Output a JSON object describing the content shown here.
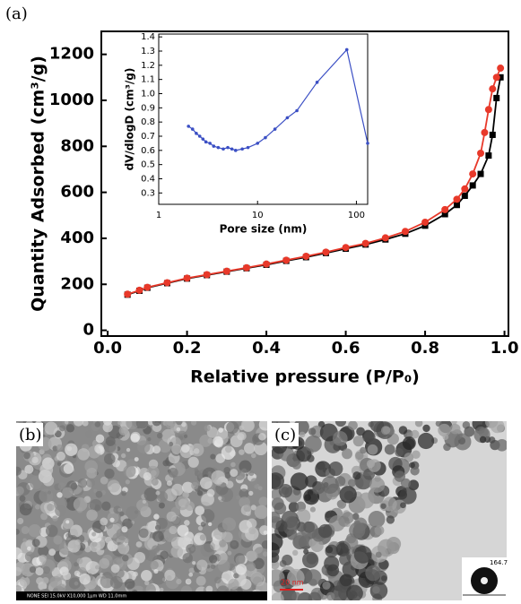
{
  "panels": {
    "a": "(a)",
    "b": "(b)",
    "c": "(c)"
  },
  "sem_info": "NONE   SEI   15.0kV   X10,000   1µm   WD 11.0mm",
  "tem_scale": "20 nm",
  "contact_angle": "164.7",
  "chart_data": [
    {
      "type": "line",
      "x_label": "Relative pressure (P/P₀)",
      "y_label": "Quantity Adsorbed (cm³/g)",
      "xlim": [
        -0.016,
        1.01
      ],
      "ylim": [
        -25,
        1300
      ],
      "xticks": [
        {
          "value": 0,
          "label": "0.0"
        },
        0.2,
        0.4,
        0.6,
        0.8,
        {
          "value": 1,
          "label": "1.0"
        }
      ],
      "yticks": [
        0,
        200,
        400,
        600,
        800,
        1000,
        1200
      ],
      "series": [
        {
          "color": "#000000",
          "marker": "square",
          "x": [
            0.05,
            0.08,
            0.1,
            0.15,
            0.2,
            0.25,
            0.3,
            0.35,
            0.4,
            0.45,
            0.5,
            0.55,
            0.6,
            0.65,
            0.7,
            0.75,
            0.8,
            0.85,
            0.88,
            0.9,
            0.92,
            0.94,
            0.96,
            0.97,
            0.98,
            0.99
          ],
          "values": [
            155,
            172,
            185,
            205,
            225,
            240,
            255,
            270,
            285,
            302,
            318,
            336,
            355,
            373,
            395,
            420,
            455,
            505,
            545,
            585,
            630,
            680,
            760,
            850,
            1010,
            1100
          ]
        },
        {
          "color": "#e8392a",
          "marker": "circle",
          "x": [
            0.05,
            0.08,
            0.1,
            0.15,
            0.2,
            0.25,
            0.3,
            0.35,
            0.4,
            0.45,
            0.5,
            0.55,
            0.6,
            0.65,
            0.7,
            0.75,
            0.8,
            0.85,
            0.88,
            0.9,
            0.92,
            0.94,
            0.95,
            0.96,
            0.97,
            0.98,
            0.99
          ],
          "values": [
            157,
            174,
            187,
            207,
            227,
            242,
            257,
            272,
            288,
            305,
            322,
            340,
            360,
            378,
            402,
            430,
            470,
            525,
            570,
            615,
            680,
            770,
            860,
            960,
            1050,
            1100,
            1140
          ]
        }
      ]
    },
    {
      "type": "line",
      "x_label": "Pore size (nm)",
      "y_label": "dV/dlogD (cm³/g)",
      "log_x": true,
      "xlim": [
        1,
        130
      ],
      "ylim": [
        0.22,
        1.42
      ],
      "xticks": [
        1,
        10,
        100
      ],
      "yticks": [
        0.3,
        0.4,
        0.5,
        0.6,
        0.7,
        0.8,
        0.9,
        {
          "value": 1,
          "label": "1.0"
        },
        1.1,
        1.2,
        1.3,
        1.4
      ],
      "series": [
        {
          "color": "#3b4fc4",
          "marker": "dot",
          "x": [
            2,
            2.2,
            2.4,
            2.6,
            2.8,
            3,
            3.3,
            3.6,
            4,
            4.5,
            5,
            5.5,
            6,
            7,
            8,
            10,
            12,
            15,
            20,
            25,
            40,
            80,
            130
          ],
          "values": [
            0.77,
            0.75,
            0.72,
            0.7,
            0.68,
            0.66,
            0.65,
            0.63,
            0.62,
            0.61,
            0.62,
            0.61,
            0.6,
            0.61,
            0.62,
            0.65,
            0.69,
            0.75,
            0.83,
            0.88,
            1.08,
            1.31,
            0.65
          ]
        }
      ]
    }
  ]
}
